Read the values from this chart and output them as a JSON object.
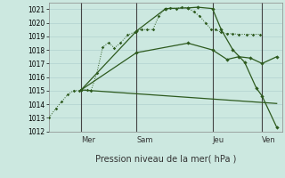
{
  "xlabel": "Pression niveau de la mer( hPa )",
  "background_color": "#cce8e0",
  "grid_color": "#aacccc",
  "line_color": "#2d5a1e",
  "ylim": [
    1012,
    1021.5
  ],
  "yticks": [
    1012,
    1013,
    1014,
    1015,
    1016,
    1017,
    1018,
    1019,
    1020,
    1021
  ],
  "xlim": [
    0,
    4.0
  ],
  "day_vlines": [
    0.55,
    1.5,
    2.8,
    3.65
  ],
  "day_labels": [
    [
      "Mer",
      0.55
    ],
    [
      "Sam",
      1.5
    ],
    [
      "Jeu",
      2.8
    ],
    [
      "Ven",
      3.65
    ]
  ],
  "line_dotted": {
    "x": [
      0.0,
      0.12,
      0.22,
      0.32,
      0.42,
      0.52,
      0.55,
      0.65,
      0.72,
      0.82,
      0.92,
      1.02,
      1.12,
      1.22,
      1.35,
      1.48,
      1.58,
      1.68,
      1.78,
      1.88,
      1.98,
      2.08,
      2.18,
      2.28,
      2.38,
      2.48,
      2.58,
      2.68,
      2.78,
      2.85,
      2.95,
      3.05,
      3.15,
      3.25,
      3.38,
      3.5,
      3.62
    ],
    "y": [
      1013.0,
      1013.7,
      1014.2,
      1014.7,
      1015.0,
      1015.0,
      1015.05,
      1015.05,
      1015.0,
      1016.3,
      1018.2,
      1018.55,
      1018.15,
      1018.5,
      1019.1,
      1019.35,
      1019.5,
      1019.5,
      1019.5,
      1020.5,
      1021.0,
      1021.1,
      1021.05,
      1021.15,
      1021.1,
      1020.8,
      1020.5,
      1020.0,
      1019.5,
      1019.5,
      1019.3,
      1019.2,
      1019.2,
      1019.15,
      1019.15,
      1019.15,
      1019.15
    ]
  },
  "line_high": {
    "x": [
      0.55,
      1.5,
      2.0,
      2.38,
      2.55,
      2.8,
      2.95,
      3.15,
      3.35,
      3.55,
      3.65,
      3.9
    ],
    "y": [
      1015.05,
      1019.4,
      1021.05,
      1021.1,
      1021.15,
      1021.05,
      1019.5,
      1018.0,
      1017.1,
      1015.2,
      1014.6,
      1012.3
    ]
  },
  "line_mid": {
    "x": [
      0.55,
      1.5,
      2.38,
      2.8,
      3.05,
      3.25,
      3.45,
      3.65,
      3.9
    ],
    "y": [
      1015.05,
      1017.8,
      1018.5,
      1018.0,
      1017.3,
      1017.5,
      1017.4,
      1017.0,
      1017.5
    ]
  },
  "line_low": {
    "x": [
      0.55,
      3.9
    ],
    "y": [
      1015.05,
      1014.05
    ]
  }
}
